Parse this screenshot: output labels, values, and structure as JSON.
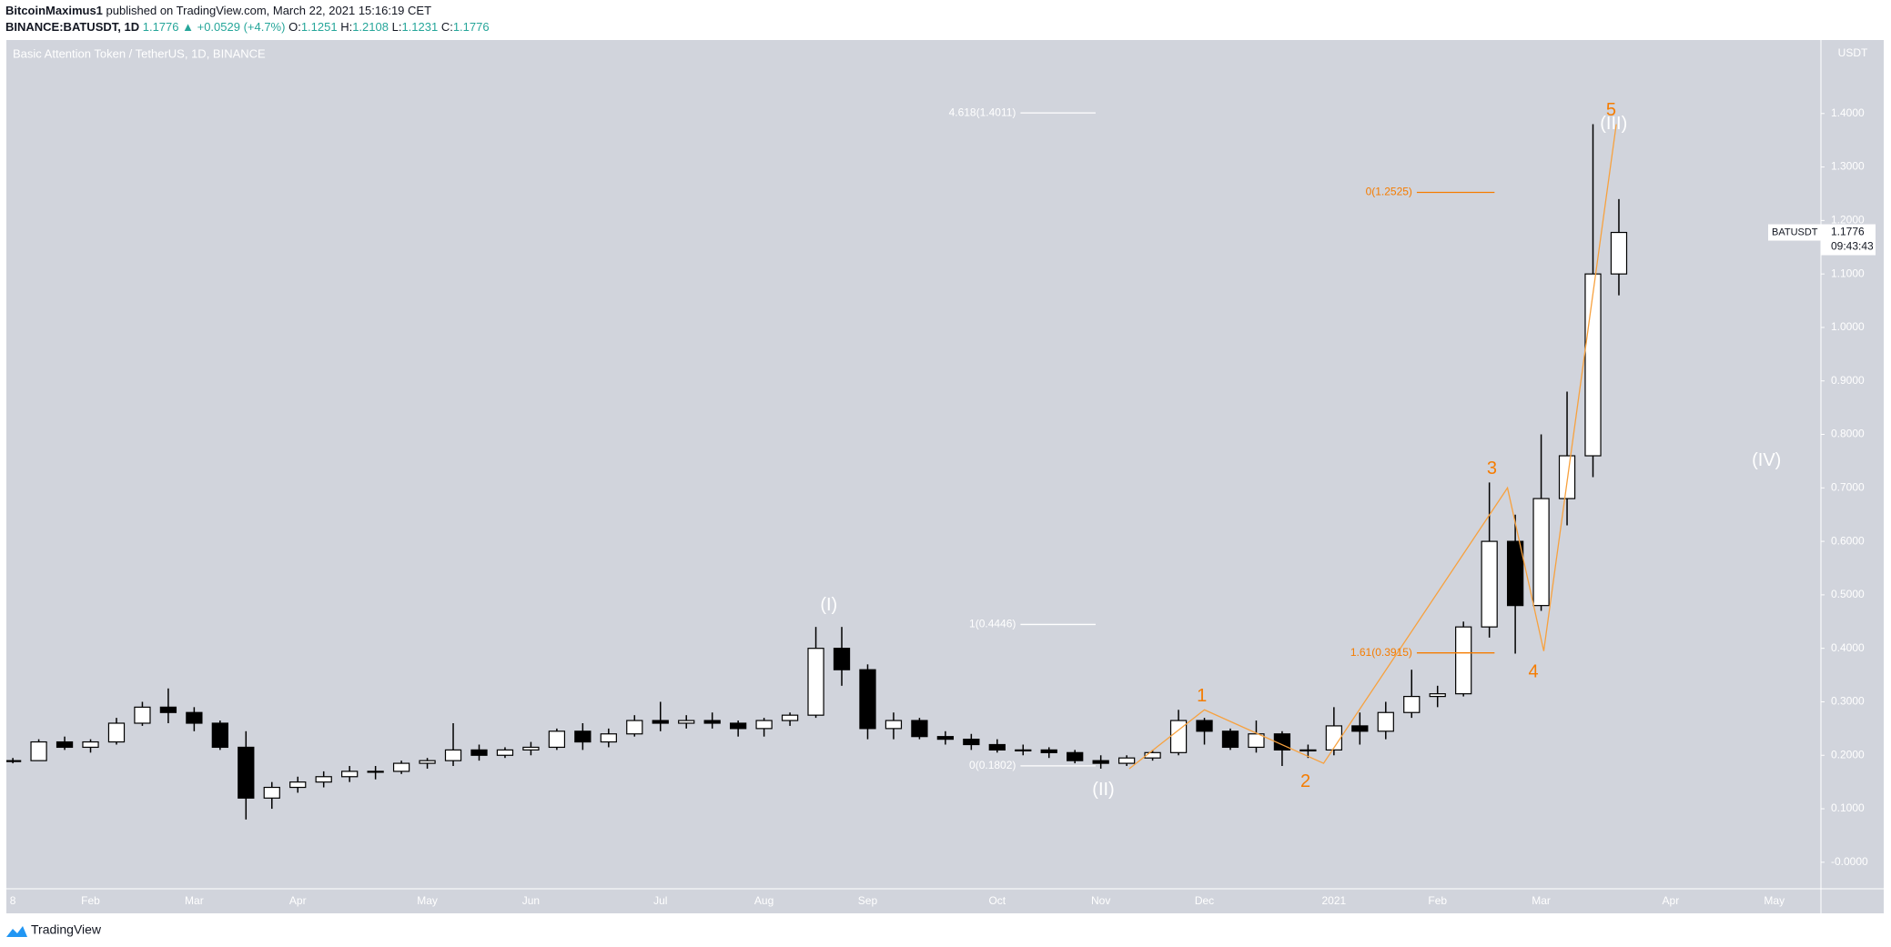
{
  "header": {
    "author": "BitcoinMaximus1",
    "published": "published on TradingView.com, March 22, 2021 15:16:19 CET",
    "symbol": "BINANCE:BATUSDT, 1D",
    "last": "1.1776",
    "change": "▲ +0.0529 (+4.7%)",
    "ohlc": [
      {
        "label": "O:",
        "value": "1.1251"
      },
      {
        "label": "H:",
        "value": "1.2108"
      },
      {
        "label": "L:",
        "value": "1.1231"
      },
      {
        "label": "C:",
        "value": "1.1776"
      }
    ]
  },
  "footer": {
    "brand": "TradingView"
  },
  "chart_data": {
    "type": "candlestick",
    "title": "Basic Attention Token / TetherUS, 1D, BINANCE",
    "y_unit": "USDT",
    "categories": [
      "8",
      null,
      null,
      "Feb",
      null,
      null,
      null,
      "Mar",
      null,
      null,
      null,
      "Apr",
      null,
      null,
      null,
      null,
      "May",
      null,
      null,
      null,
      "Jun",
      null,
      null,
      null,
      null,
      "Jul",
      null,
      null,
      null,
      "Aug",
      null,
      null,
      null,
      "Sep",
      null,
      null,
      null,
      null,
      "Oct",
      null,
      null,
      null,
      "Nov",
      null,
      null,
      null,
      "Dec",
      null,
      null,
      null,
      null,
      "2021",
      null,
      null,
      null,
      "Feb",
      null,
      null,
      null,
      "Mar",
      null,
      null,
      null,
      null,
      "Apr",
      null,
      null,
      null,
      "May",
      null
    ],
    "open": [
      0.19,
      0.19,
      0.225,
      0.215,
      0.225,
      0.26,
      0.29,
      0.28,
      0.26,
      0.215,
      0.12,
      0.14,
      0.15,
      0.16,
      0.17,
      0.17,
      0.185,
      0.19,
      0.21,
      0.2,
      0.21,
      0.215,
      0.245,
      0.225,
      0.24,
      0.265,
      0.26,
      0.265,
      0.26,
      0.25,
      0.265,
      0.275,
      0.4,
      0.36,
      0.25,
      0.265,
      0.235,
      0.23,
      0.22,
      0.21,
      0.21,
      0.205,
      0.19,
      0.185,
      0.195,
      0.205,
      0.265,
      0.245,
      0.215,
      0.24,
      0.21,
      0.21,
      0.255,
      0.245,
      0.28,
      0.31,
      0.315,
      0.44,
      0.6,
      0.48,
      0.68,
      0.76,
      1.1,
      null,
      null,
      null,
      null,
      null,
      null,
      null
    ],
    "high": [
      0.195,
      0.23,
      0.235,
      0.23,
      0.27,
      0.3,
      0.325,
      0.29,
      0.265,
      0.245,
      0.15,
      0.16,
      0.17,
      0.18,
      0.18,
      0.19,
      0.195,
      0.26,
      0.22,
      0.215,
      0.225,
      0.25,
      0.26,
      0.25,
      0.275,
      0.3,
      0.275,
      0.28,
      0.265,
      0.27,
      0.28,
      0.44,
      0.44,
      0.37,
      0.28,
      0.27,
      0.245,
      0.24,
      0.23,
      0.22,
      0.215,
      0.21,
      0.2,
      0.2,
      0.21,
      0.285,
      0.27,
      0.25,
      0.265,
      0.245,
      0.22,
      0.29,
      0.28,
      0.3,
      0.36,
      0.33,
      0.45,
      0.71,
      0.65,
      0.8,
      0.88,
      1.38,
      1.24,
      null,
      null,
      null,
      null,
      null,
      null,
      null
    ],
    "low": [
      0.185,
      0.19,
      0.21,
      0.205,
      0.22,
      0.255,
      0.26,
      0.245,
      0.21,
      0.08,
      0.1,
      0.13,
      0.14,
      0.15,
      0.155,
      0.165,
      0.175,
      0.18,
      0.19,
      0.195,
      0.2,
      0.21,
      0.21,
      0.215,
      0.235,
      0.245,
      0.25,
      0.25,
      0.235,
      0.235,
      0.255,
      0.27,
      0.33,
      0.23,
      0.23,
      0.23,
      0.22,
      0.21,
      0.205,
      0.2,
      0.195,
      0.185,
      0.175,
      0.18,
      0.19,
      0.2,
      0.22,
      0.21,
      0.205,
      0.18,
      0.195,
      0.2,
      0.22,
      0.23,
      0.27,
      0.29,
      0.31,
      0.42,
      0.39,
      0.47,
      0.63,
      0.72,
      1.06,
      null,
      null,
      null,
      null,
      null,
      null,
      null
    ],
    "close": [
      0.19,
      0.225,
      0.215,
      0.225,
      0.26,
      0.29,
      0.28,
      0.26,
      0.215,
      0.12,
      0.14,
      0.15,
      0.16,
      0.17,
      0.17,
      0.185,
      0.19,
      0.21,
      0.2,
      0.21,
      0.215,
      0.245,
      0.225,
      0.24,
      0.265,
      0.26,
      0.265,
      0.26,
      0.25,
      0.265,
      0.275,
      0.4,
      0.36,
      0.25,
      0.265,
      0.235,
      0.23,
      0.22,
      0.21,
      0.21,
      0.205,
      0.19,
      0.185,
      0.195,
      0.205,
      0.265,
      0.245,
      0.215,
      0.24,
      0.21,
      0.21,
      0.255,
      0.245,
      0.28,
      0.31,
      0.315,
      0.44,
      0.6,
      0.48,
      0.68,
      0.76,
      1.1,
      1.1776,
      null,
      null,
      null,
      null,
      null,
      null,
      null
    ],
    "xlim": [
      -0.25,
      69.8
    ],
    "ylim": [
      -0.0496,
      1.5374
    ],
    "yticks": [
      {
        "value": 0,
        "label": "-0.0000"
      },
      {
        "value": 0.1,
        "label": "0.1000"
      },
      {
        "value": 0.2,
        "label": "0.2000"
      },
      {
        "value": 0.3,
        "label": "0.3000"
      },
      {
        "value": 0.4,
        "label": "0.4000"
      },
      {
        "value": 0.5,
        "label": "0.5000"
      },
      {
        "value": 0.6,
        "label": "0.6000"
      },
      {
        "value": 0.7,
        "label": "0.7000"
      },
      {
        "value": 0.8,
        "label": "0.8000"
      },
      {
        "value": 0.9,
        "label": "0.9000"
      },
      {
        "value": 1.0,
        "label": "1.0000"
      },
      {
        "value": 1.1,
        "label": "1.1000"
      },
      {
        "value": 1.2,
        "label": "1.2000"
      },
      {
        "value": 1.3,
        "label": "1.3000"
      },
      {
        "value": 1.4,
        "label": "1.4000"
      }
    ],
    "price_label": {
      "name": "BATUSDT",
      "value": 1.1776,
      "label": "1.1776",
      "countdown": "09:43:43"
    },
    "wave_path": {
      "color": "#f7a13e",
      "x": [
        43.1,
        46,
        50.6,
        57.7,
        59.1,
        61.9
      ],
      "y": [
        0.175,
        0.285,
        0.185,
        0.7,
        0.395,
        1.38
      ]
    },
    "fib_lines": [
      {
        "label": "4.618(1.4011)",
        "value": 1.4011,
        "x": [
          38.9,
          41.8
        ],
        "color": "#ffffff"
      },
      {
        "label": "1(0.4446)",
        "value": 0.4446,
        "x": [
          38.9,
          41.8
        ],
        "color": "#ffffff"
      },
      {
        "label": "0(0.1802)",
        "value": 0.1802,
        "x": [
          38.9,
          41.8
        ],
        "color": "#ffffff"
      },
      {
        "label": "0(1.2525)",
        "value": 1.2525,
        "x": [
          54.2,
          57.2
        ],
        "color": "#f57c00"
      },
      {
        "label": "1.61(0.3915)",
        "value": 0.3915,
        "x": [
          54.2,
          57.2
        ],
        "color": "#f57c00"
      }
    ],
    "wave_labels": [
      {
        "text": "(I)",
        "x": 31.5,
        "y": 0.48,
        "color": "#ffffff"
      },
      {
        "text": "(II)",
        "x": 42.1,
        "y": 0.135,
        "color": "#ffffff"
      },
      {
        "text": "(III)",
        "x": 61.8,
        "y": 1.38,
        "color": "#ffffff"
      },
      {
        "text": "(IV)",
        "x": 67.7,
        "y": 0.75,
        "color": "#ffffff"
      },
      {
        "text": "1",
        "x": 45.9,
        "y": 0.31,
        "color": "#f57c00"
      },
      {
        "text": "2",
        "x": 49.9,
        "y": 0.15,
        "color": "#f57c00"
      },
      {
        "text": "3",
        "x": 57.1,
        "y": 0.735,
        "color": "#f57c00"
      },
      {
        "text": "4",
        "x": 58.7,
        "y": 0.355,
        "color": "#f57c00"
      },
      {
        "text": "5",
        "x": 61.7,
        "y": 1.405,
        "color": "#f57c00"
      }
    ]
  }
}
